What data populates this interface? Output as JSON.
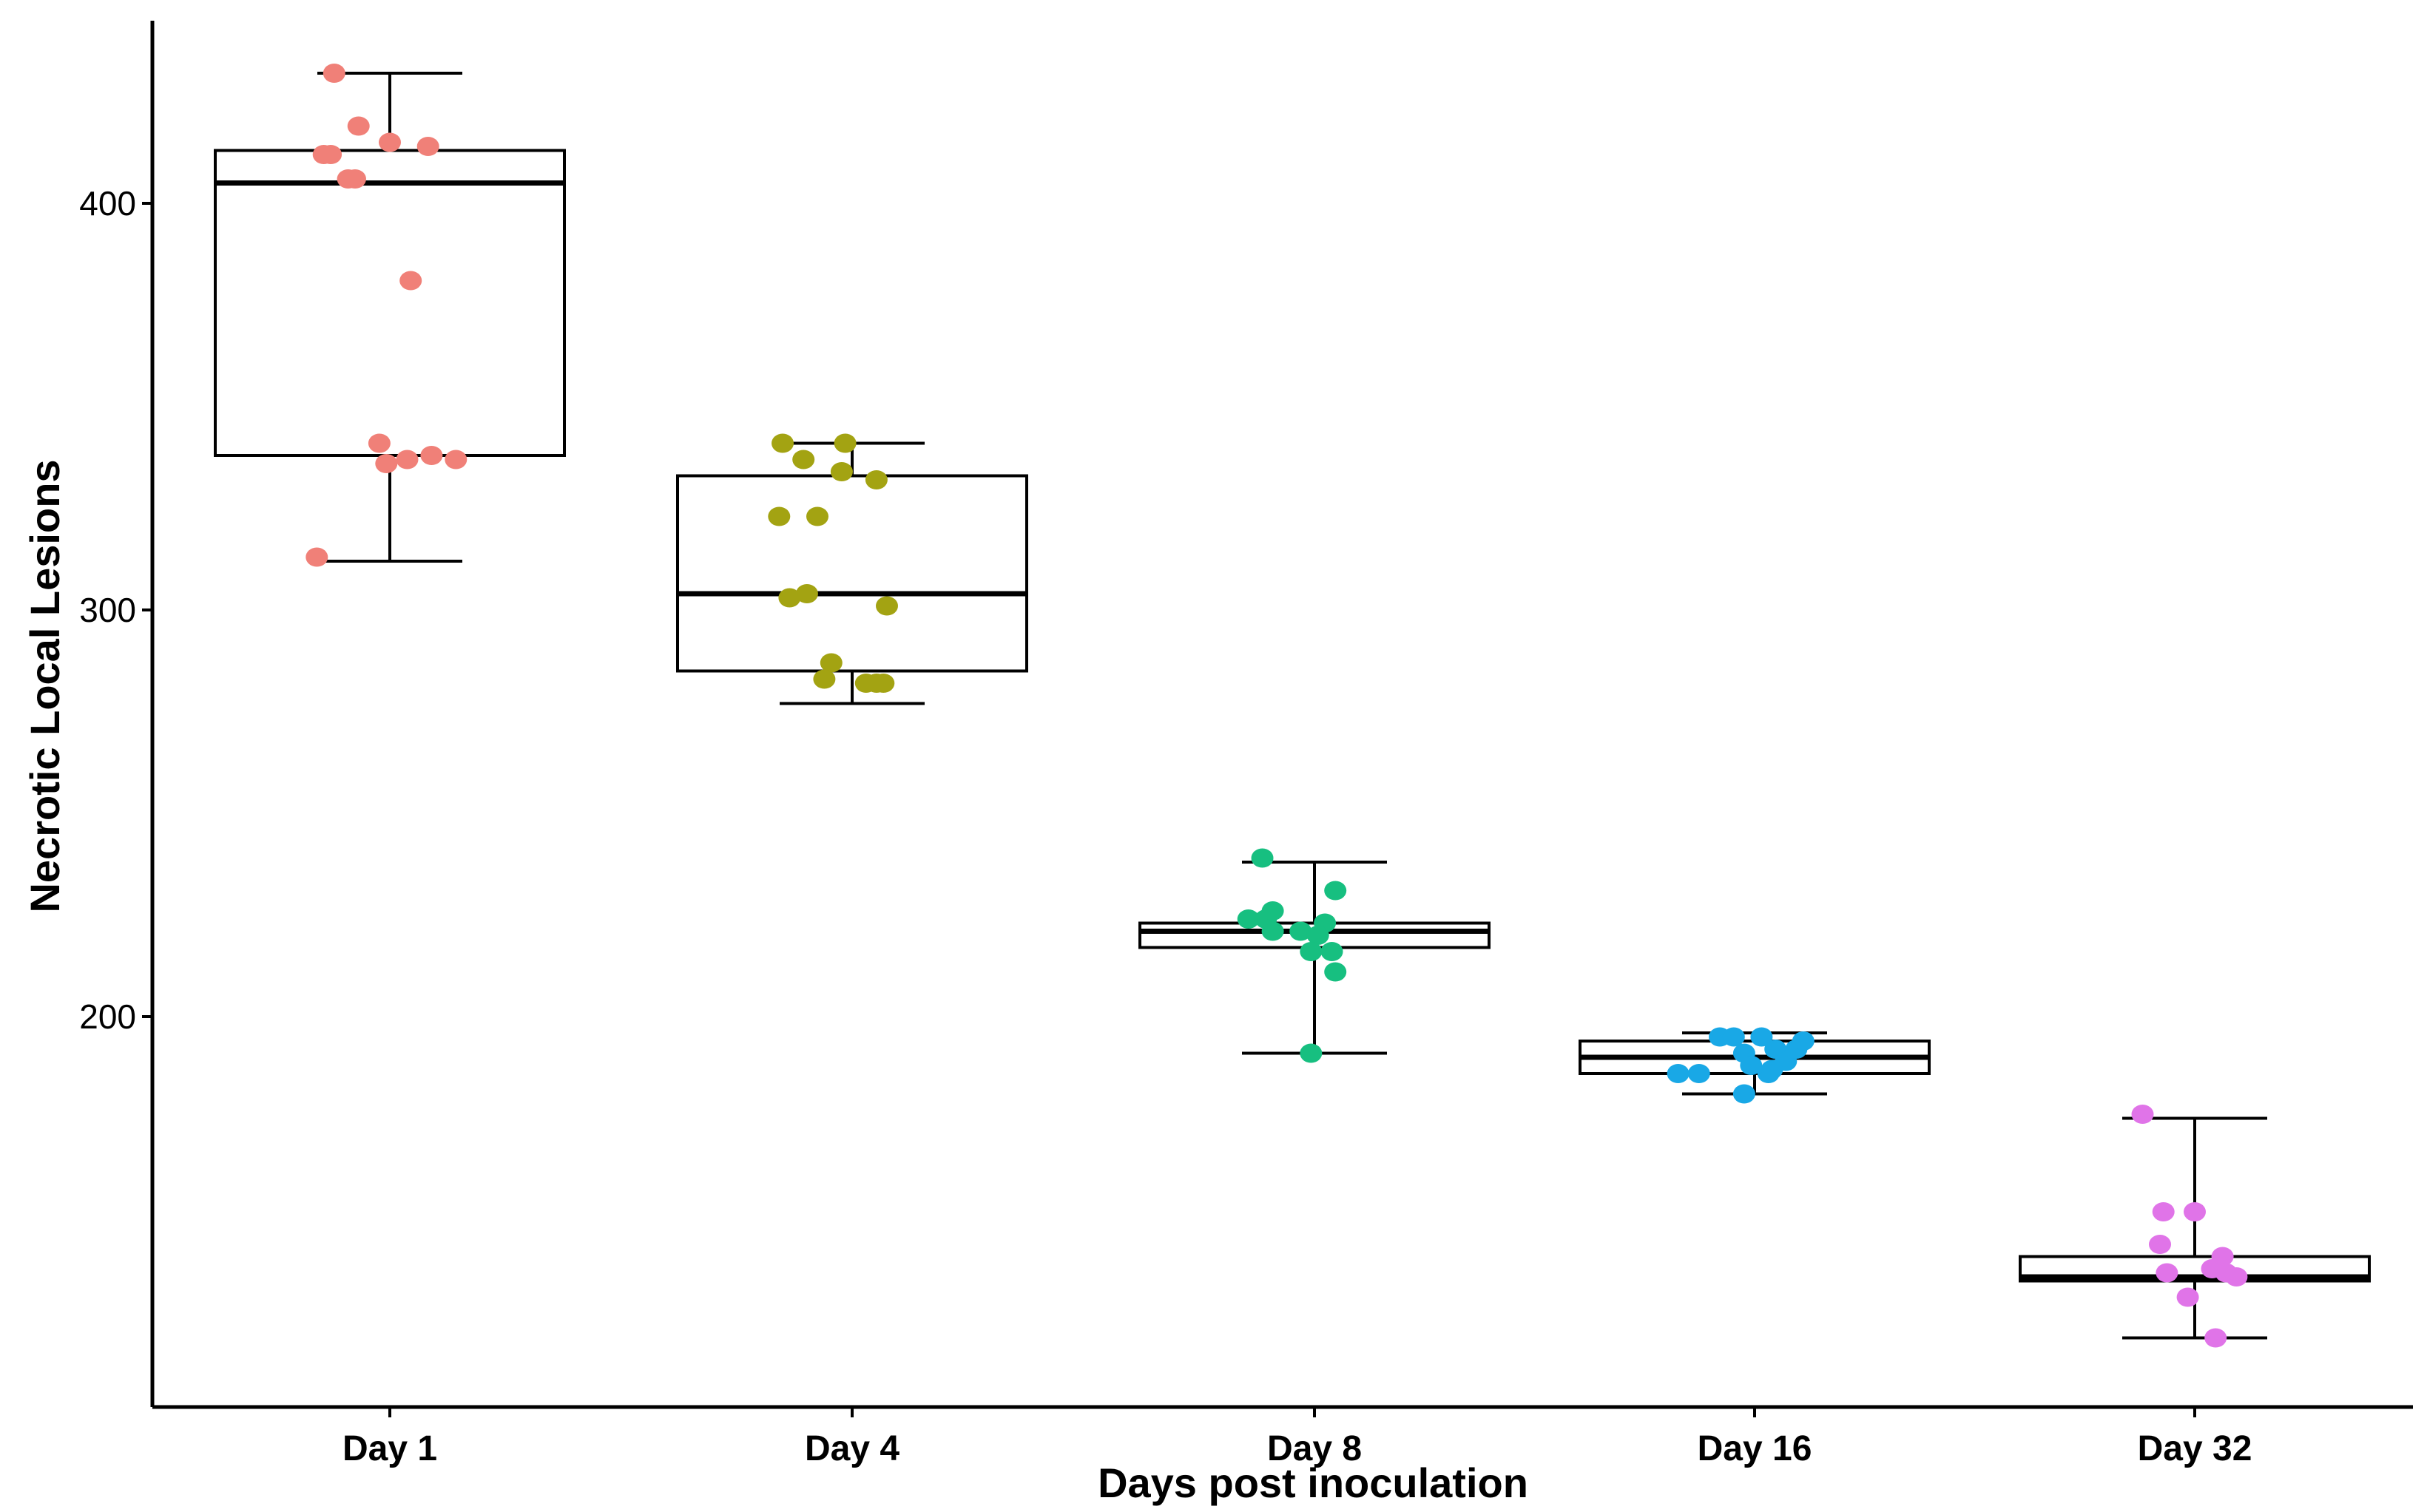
{
  "chart_data": {
    "type": "boxplot",
    "title": "",
    "xlabel": "Days post inoculation",
    "ylabel": "Necrotic Local Lesions",
    "ylim": [
      105,
      440
    ],
    "yticks": [
      200,
      300,
      400
    ],
    "grid": false,
    "legend": "none",
    "categories": [
      "Day 1",
      "Day 4",
      "Day 8",
      "Day 16",
      "Day 32"
    ],
    "colors": [
      "#f08078",
      "#a3a312",
      "#17bf80",
      "#19a8e6",
      "#e074e8"
    ],
    "boxes": [
      {
        "name": "Day 1",
        "whisker_low": 312,
        "q1": 338,
        "median": 405,
        "q3": 413,
        "whisker_high": 432
      },
      {
        "name": "Day 4",
        "whisker_low": 277,
        "q1": 285,
        "median": 304,
        "q3": 333,
        "whisker_high": 341
      },
      {
        "name": "Day 8",
        "whisker_low": 191,
        "q1": 217,
        "median": 221,
        "q3": 223,
        "whisker_high": 238
      },
      {
        "name": "Day 16",
        "whisker_low": 181,
        "q1": 186,
        "median": 190,
        "q3": 194,
        "whisker_high": 196
      },
      {
        "name": "Day 32",
        "whisker_low": 121,
        "q1": 135,
        "median": 136,
        "q3": 141,
        "whisker_high": 175
      }
    ],
    "points": [
      [
        {
          "x": -0.16,
          "y": 432
        },
        {
          "x": -0.09,
          "y": 419
        },
        {
          "x": 0.0,
          "y": 415
        },
        {
          "x": 0.11,
          "y": 414
        },
        {
          "x": -0.17,
          "y": 412
        },
        {
          "x": -0.19,
          "y": 412
        },
        {
          "x": -0.12,
          "y": 406
        },
        {
          "x": -0.1,
          "y": 406
        },
        {
          "x": 0.06,
          "y": 381
        },
        {
          "x": -0.03,
          "y": 341
        },
        {
          "x": 0.05,
          "y": 337
        },
        {
          "x": 0.12,
          "y": 338
        },
        {
          "x": 0.19,
          "y": 337
        },
        {
          "x": -0.01,
          "y": 336
        },
        {
          "x": -0.21,
          "y": 313
        }
      ],
      [
        {
          "x": -0.2,
          "y": 341
        },
        {
          "x": -0.14,
          "y": 337
        },
        {
          "x": -0.03,
          "y": 334
        },
        {
          "x": -0.02,
          "y": 341
        },
        {
          "x": 0.07,
          "y": 332
        },
        {
          "x": -0.21,
          "y": 323
        },
        {
          "x": -0.1,
          "y": 323
        },
        {
          "x": -0.18,
          "y": 303
        },
        {
          "x": -0.13,
          "y": 304
        },
        {
          "x": 0.1,
          "y": 301
        },
        {
          "x": -0.06,
          "y": 287
        },
        {
          "x": -0.08,
          "y": 283
        },
        {
          "x": 0.04,
          "y": 282
        },
        {
          "x": 0.07,
          "y": 282
        },
        {
          "x": 0.09,
          "y": 282
        }
      ],
      [
        {
          "x": -0.15,
          "y": 239
        },
        {
          "x": 0.06,
          "y": 231
        },
        {
          "x": -0.14,
          "y": 224
        },
        {
          "x": -0.12,
          "y": 226
        },
        {
          "x": -0.19,
          "y": 224
        },
        {
          "x": 0.03,
          "y": 223
        },
        {
          "x": -0.12,
          "y": 221
        },
        {
          "x": -0.04,
          "y": 221
        },
        {
          "x": 0.01,
          "y": 220
        },
        {
          "x": -0.01,
          "y": 216
        },
        {
          "x": 0.05,
          "y": 216
        },
        {
          "x": 0.06,
          "y": 211
        },
        {
          "x": -0.01,
          "y": 191
        }
      ],
      [
        {
          "x": -0.22,
          "y": 186
        },
        {
          "x": -0.16,
          "y": 186
        },
        {
          "x": -0.1,
          "y": 195
        },
        {
          "x": -0.06,
          "y": 195
        },
        {
          "x": -0.03,
          "y": 191
        },
        {
          "x": -0.01,
          "y": 188
        },
        {
          "x": 0.04,
          "y": 186
        },
        {
          "x": 0.06,
          "y": 192
        },
        {
          "x": 0.09,
          "y": 189
        },
        {
          "x": 0.12,
          "y": 192
        },
        {
          "x": 0.14,
          "y": 194
        },
        {
          "x": 0.02,
          "y": 195
        },
        {
          "x": -0.03,
          "y": 181
        },
        {
          "x": 0.05,
          "y": 187
        }
      ],
      [
        {
          "x": -0.15,
          "y": 176
        },
        {
          "x": -0.09,
          "y": 152
        },
        {
          "x": 0.0,
          "y": 152
        },
        {
          "x": -0.1,
          "y": 144
        },
        {
          "x": 0.08,
          "y": 141
        },
        {
          "x": -0.08,
          "y": 137
        },
        {
          "x": 0.05,
          "y": 138
        },
        {
          "x": 0.09,
          "y": 137
        },
        {
          "x": 0.12,
          "y": 136
        },
        {
          "x": -0.02,
          "y": 131
        },
        {
          "x": 0.06,
          "y": 121
        }
      ]
    ]
  }
}
